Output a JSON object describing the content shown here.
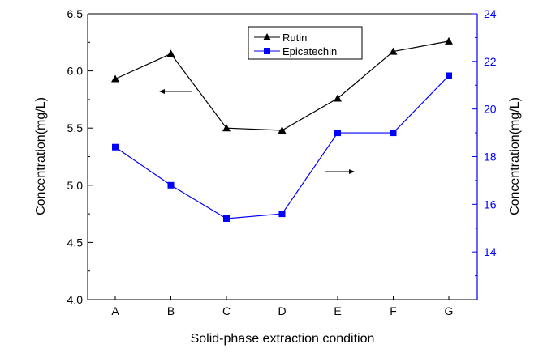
{
  "chart_data": {
    "type": "line",
    "title": "",
    "xlabel": "Solid-phase extraction condition",
    "ylabel": "Concentration(mg/L)",
    "ylabel_right": "Concentration(mg/L)",
    "categories": [
      "A",
      "B",
      "C",
      "D",
      "E",
      "F",
      "G"
    ],
    "ylim": [
      4.0,
      6.5
    ],
    "y_ticks": [
      "4.0",
      "4.5",
      "5.0",
      "5.5",
      "6.0",
      "6.5"
    ],
    "ylim_right": [
      12,
      24
    ],
    "y_ticks_right": [
      "14",
      "16",
      "18",
      "20",
      "22",
      "24"
    ],
    "grid": false,
    "legend_position": "top-center",
    "series": [
      {
        "name": "Rutin",
        "axis": "left",
        "marker": "triangle",
        "color": "#000000",
        "values": [
          5.93,
          6.15,
          5.5,
          5.48,
          5.76,
          6.17,
          6.26
        ]
      },
      {
        "name": "Epicatechin",
        "axis": "right",
        "marker": "square",
        "color": "#0000ff",
        "values": [
          18.4,
          16.8,
          15.4,
          15.6,
          19.0,
          19.0,
          21.4
        ]
      }
    ]
  }
}
